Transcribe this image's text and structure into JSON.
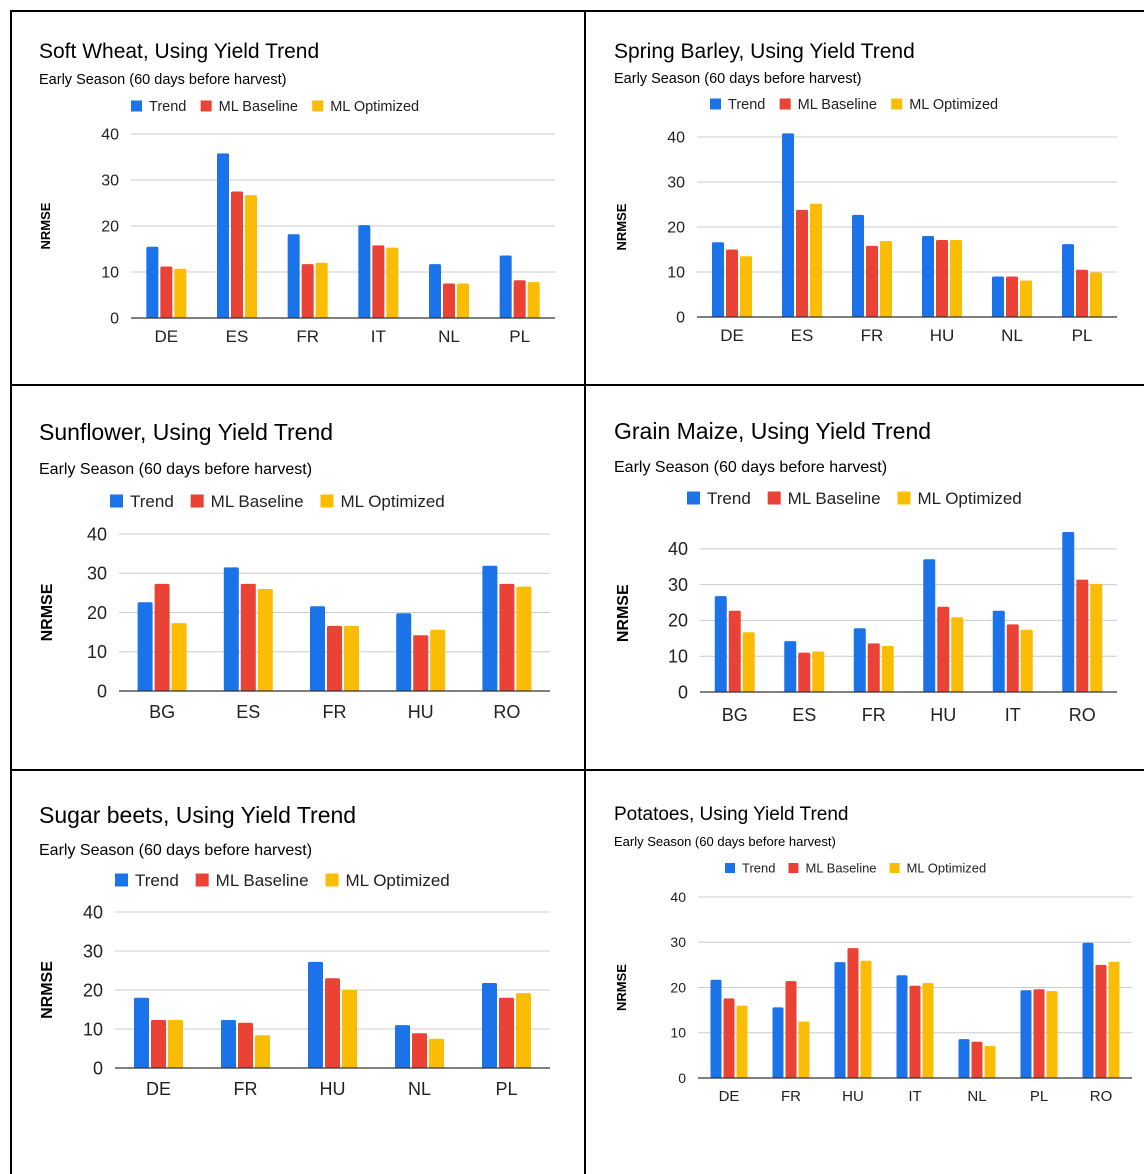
{
  "colors": {
    "trend": "#1a73e8",
    "ml_baseline": "#ea4335",
    "ml_optimized": "#fbbc04",
    "gridline": "#cccccc",
    "axis": "#333333"
  },
  "chart_data": [
    {
      "type": "bar",
      "title": "Soft Wheat, Using Yield Trend",
      "subtitle": "Early Season (60 days before harvest)",
      "ylabel": "NRMSE",
      "xlabel": "",
      "ylim": [
        0,
        40
      ],
      "yticks": [
        0,
        10,
        20,
        30,
        40
      ],
      "grid": true,
      "legend": "top",
      "categories": [
        "DE",
        "ES",
        "FR",
        "IT",
        "NL",
        "PL"
      ],
      "series": [
        {
          "name": "Trend",
          "values": [
            15.5,
            35.8,
            18.2,
            20.2,
            11.7,
            13.6
          ]
        },
        {
          "name": "ML Baseline",
          "values": [
            11.2,
            27.5,
            11.7,
            15.8,
            7.5,
            8.2
          ]
        },
        {
          "name": "ML Optimized",
          "values": [
            10.7,
            26.7,
            12.0,
            15.3,
            7.5,
            7.8
          ]
        }
      ]
    },
    {
      "type": "bar",
      "title": "Spring Barley, Using Yield Trend",
      "subtitle": "Early Season (60 days before harvest)",
      "ylabel": "NRMSE",
      "xlabel": "",
      "ylim": [
        0,
        40
      ],
      "yticks": [
        0,
        10,
        20,
        30,
        40
      ],
      "grid": true,
      "legend": "top",
      "categories": [
        "DE",
        "ES",
        "FR",
        "HU",
        "NL",
        "PL"
      ],
      "series": [
        {
          "name": "Trend",
          "values": [
            16.6,
            40.8,
            22.7,
            18.0,
            9.0,
            16.2
          ]
        },
        {
          "name": "ML Baseline",
          "values": [
            15.0,
            23.8,
            15.8,
            17.1,
            9.0,
            10.5
          ]
        },
        {
          "name": "ML Optimized",
          "values": [
            13.5,
            25.2,
            16.9,
            17.1,
            8.1,
            9.9
          ]
        }
      ]
    },
    {
      "type": "bar",
      "title": "Sunflower, Using Yield Trend",
      "subtitle": "Early Season (60 days before harvest)",
      "ylabel": "NRMSE",
      "xlabel": "",
      "ylim": [
        0,
        40
      ],
      "yticks": [
        0,
        10,
        20,
        30,
        40
      ],
      "grid": true,
      "legend": "top",
      "categories": [
        "BG",
        "ES",
        "FR",
        "HU",
        "RO"
      ],
      "series": [
        {
          "name": "Trend",
          "values": [
            22.6,
            31.5,
            21.6,
            19.8,
            31.9
          ]
        },
        {
          "name": "ML Baseline",
          "values": [
            27.3,
            27.3,
            16.6,
            14.2,
            27.3
          ]
        },
        {
          "name": "ML Optimized",
          "values": [
            17.3,
            26.0,
            16.6,
            15.6,
            26.6
          ]
        }
      ]
    },
    {
      "type": "bar",
      "title": "Grain Maize, Using Yield Trend",
      "subtitle": "Early Season (60 days before harvest)",
      "ylabel": "NRMSE",
      "xlabel": "",
      "ylim": [
        0,
        44
      ],
      "yticks": [
        0,
        10,
        20,
        30,
        40
      ],
      "grid": true,
      "legend": "top",
      "categories": [
        "BG",
        "ES",
        "FR",
        "HU",
        "IT",
        "RO"
      ],
      "series": [
        {
          "name": "Trend",
          "values": [
            26.8,
            14.2,
            17.8,
            37.1,
            22.7,
            44.7
          ]
        },
        {
          "name": "ML Baseline",
          "values": [
            22.7,
            11.0,
            13.6,
            23.8,
            18.9,
            31.4
          ]
        },
        {
          "name": "ML Optimized",
          "values": [
            16.7,
            11.3,
            12.9,
            20.9,
            17.4,
            30.2
          ]
        }
      ]
    },
    {
      "type": "bar",
      "title": "Sugar beets, Using Yield Trend",
      "subtitle": "Early Season (60 days before harvest)",
      "ylabel": "NRMSE",
      "xlabel": "",
      "ylim": [
        0,
        40
      ],
      "yticks": [
        0,
        10,
        20,
        30,
        40
      ],
      "grid": true,
      "legend": "top",
      "categories": [
        "DE",
        "FR",
        "HU",
        "NL",
        "PL"
      ],
      "series": [
        {
          "name": "Trend",
          "values": [
            18.0,
            12.3,
            27.2,
            11.0,
            21.8
          ]
        },
        {
          "name": "ML Baseline",
          "values": [
            12.3,
            11.6,
            23.0,
            8.9,
            18.0
          ]
        },
        {
          "name": "ML Optimized",
          "values": [
            12.3,
            8.4,
            20.0,
            7.5,
            19.2
          ]
        }
      ]
    },
    {
      "type": "bar",
      "title": "Potatoes, Using Yield Trend",
      "subtitle": "Early Season (60 days before harvest)",
      "ylabel": "NRMSE",
      "xlabel": "",
      "ylim": [
        0,
        40
      ],
      "yticks": [
        0,
        10,
        20,
        30,
        40
      ],
      "grid": true,
      "legend": "top",
      "categories": [
        "DE",
        "FR",
        "HU",
        "IT",
        "NL",
        "PL",
        "RO"
      ],
      "series": [
        {
          "name": "Trend",
          "values": [
            21.7,
            15.6,
            25.6,
            22.7,
            8.6,
            19.4,
            29.9
          ]
        },
        {
          "name": "ML Baseline",
          "values": [
            17.6,
            21.4,
            28.7,
            20.4,
            8.0,
            19.6,
            25.0
          ]
        },
        {
          "name": "ML Optimized",
          "values": [
            16.0,
            12.5,
            25.9,
            21.0,
            7.1,
            19.2,
            25.7
          ]
        }
      ]
    }
  ]
}
